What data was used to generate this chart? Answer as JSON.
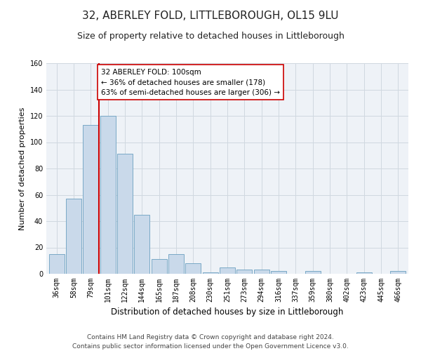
{
  "title": "32, ABERLEY FOLD, LITTLEBOROUGH, OL15 9LU",
  "subtitle": "Size of property relative to detached houses in Littleborough",
  "xlabel": "Distribution of detached houses by size in Littleborough",
  "ylabel": "Number of detached properties",
  "categories": [
    "36sqm",
    "58sqm",
    "79sqm",
    "101sqm",
    "122sqm",
    "144sqm",
    "165sqm",
    "187sqm",
    "208sqm",
    "230sqm",
    "251sqm",
    "273sqm",
    "294sqm",
    "316sqm",
    "337sqm",
    "359sqm",
    "380sqm",
    "402sqm",
    "423sqm",
    "445sqm",
    "466sqm"
  ],
  "values": [
    15,
    57,
    113,
    120,
    91,
    45,
    11,
    15,
    8,
    1,
    5,
    3,
    3,
    2,
    0,
    2,
    0,
    0,
    1,
    0,
    2
  ],
  "bar_color": "#c9d9ea",
  "bar_edge_color": "#6a9fc0",
  "highlight_index": 3,
  "highlight_line_color": "#cc0000",
  "annotation_text": "32 ABERLEY FOLD: 100sqm\n← 36% of detached houses are smaller (178)\n63% of semi-detached houses are larger (306) →",
  "annotation_box_color": "#ffffff",
  "annotation_box_edge_color": "#cc0000",
  "ylim": [
    0,
    160
  ],
  "yticks": [
    0,
    20,
    40,
    60,
    80,
    100,
    120,
    140,
    160
  ],
  "grid_color": "#d0d8e0",
  "background_color": "#eef2f7",
  "footer": "Contains HM Land Registry data © Crown copyright and database right 2024.\nContains public sector information licensed under the Open Government Licence v3.0.",
  "title_fontsize": 11,
  "subtitle_fontsize": 9,
  "xlabel_fontsize": 8.5,
  "ylabel_fontsize": 8,
  "tick_fontsize": 7,
  "annotation_fontsize": 7.5,
  "footer_fontsize": 6.5
}
